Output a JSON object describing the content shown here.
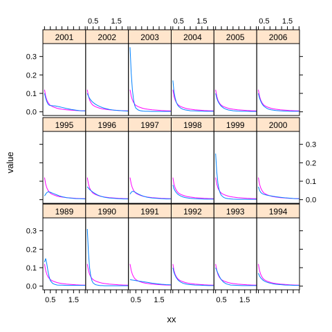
{
  "chart_data": {
    "type": "line",
    "title": "",
    "xlabel": "xx",
    "ylabel": "value",
    "xlim": [
      0.18,
      2.02
    ],
    "ylim": [
      -0.02,
      0.37
    ],
    "x_ticks": [
      0.5,
      1.5
    ],
    "x_tick_labels": [
      "0.5",
      "1.5"
    ],
    "y_ticks": [
      0.0,
      0.1,
      0.2,
      0.3
    ],
    "y_tick_labels": [
      "0.0",
      "0.1",
      "0.2",
      "0.3"
    ],
    "layout": {
      "columns": 6,
      "rows": 3
    },
    "colors": {
      "series1": "#0080ff",
      "series2": "#ff00ff",
      "strip": "#ffe5cc"
    },
    "x": [
      0.25,
      0.3,
      0.35,
      0.4,
      0.45,
      0.5,
      0.6,
      0.7,
      0.8,
      0.9,
      1.0,
      1.2,
      1.4,
      1.6,
      1.8,
      2.0
    ],
    "panels": [
      {
        "year": "2001",
        "s1": [
          0.1,
          0.075,
          0.055,
          0.042,
          0.036,
          0.034,
          0.033,
          0.032,
          0.03,
          0.027,
          0.024,
          0.018,
          0.013,
          0.009,
          0.006,
          0.005
        ],
        "s2": [
          0.12,
          0.085,
          0.064,
          0.051,
          0.042,
          0.035,
          0.028,
          0.023,
          0.019,
          0.016,
          0.014,
          0.011,
          0.009,
          0.007,
          0.006,
          0.005
        ]
      },
      {
        "year": "2002",
        "s1": [
          0.1,
          0.085,
          0.073,
          0.064,
          0.057,
          0.051,
          0.041,
          0.034,
          0.028,
          0.023,
          0.019,
          0.013,
          0.009,
          0.007,
          0.005,
          0.004
        ],
        "s2": [
          0.12,
          0.085,
          0.064,
          0.051,
          0.042,
          0.035,
          0.028,
          0.023,
          0.019,
          0.016,
          0.014,
          0.011,
          0.009,
          0.007,
          0.006,
          0.005
        ]
      },
      {
        "year": "2003",
        "s1": [
          0.35,
          0.21,
          0.12,
          0.065,
          0.035,
          0.02,
          0.01,
          0.006,
          0.004,
          0.003,
          0.003,
          0.002,
          0.002,
          0.002,
          0.002,
          0.002
        ],
        "s2": [
          0.12,
          0.085,
          0.064,
          0.051,
          0.042,
          0.035,
          0.028,
          0.023,
          0.019,
          0.016,
          0.014,
          0.011,
          0.009,
          0.007,
          0.006,
          0.005
        ]
      },
      {
        "year": "2004",
        "s1": [
          0.17,
          0.11,
          0.075,
          0.052,
          0.038,
          0.029,
          0.019,
          0.013,
          0.01,
          0.008,
          0.006,
          0.005,
          0.004,
          0.003,
          0.003,
          0.003
        ],
        "s2": [
          0.12,
          0.085,
          0.064,
          0.051,
          0.042,
          0.035,
          0.028,
          0.023,
          0.019,
          0.016,
          0.014,
          0.011,
          0.009,
          0.007,
          0.006,
          0.005
        ]
      },
      {
        "year": "2005",
        "s1": [
          0.1,
          0.074,
          0.058,
          0.046,
          0.037,
          0.03,
          0.02,
          0.014,
          0.01,
          0.008,
          0.006,
          0.004,
          0.003,
          0.003,
          0.002,
          0.002
        ],
        "s2": [
          0.12,
          0.085,
          0.064,
          0.051,
          0.042,
          0.035,
          0.028,
          0.023,
          0.019,
          0.016,
          0.014,
          0.011,
          0.009,
          0.007,
          0.006,
          0.005
        ]
      },
      {
        "year": "2006",
        "s1": [
          0.1,
          0.075,
          0.058,
          0.045,
          0.036,
          0.029,
          0.02,
          0.014,
          0.011,
          0.009,
          0.007,
          0.005,
          0.004,
          0.003,
          0.003,
          0.003
        ],
        "s2": [
          0.12,
          0.085,
          0.064,
          0.051,
          0.042,
          0.035,
          0.028,
          0.023,
          0.019,
          0.016,
          0.014,
          0.011,
          0.009,
          0.007,
          0.006,
          0.005
        ]
      },
      {
        "year": "1995",
        "s1": [
          0.02,
          0.03,
          0.038,
          0.042,
          0.042,
          0.04,
          0.035,
          0.03,
          0.025,
          0.02,
          0.016,
          0.011,
          0.008,
          0.006,
          0.005,
          0.004
        ],
        "s2": [
          0.12,
          0.085,
          0.064,
          0.051,
          0.042,
          0.035,
          0.028,
          0.023,
          0.019,
          0.016,
          0.014,
          0.011,
          0.009,
          0.007,
          0.006,
          0.005
        ]
      },
      {
        "year": "1996",
        "s1": [
          0.07,
          0.062,
          0.055,
          0.05,
          0.045,
          0.04,
          0.032,
          0.025,
          0.02,
          0.016,
          0.013,
          0.009,
          0.007,
          0.005,
          0.004,
          0.004
        ],
        "s2": [
          0.12,
          0.085,
          0.064,
          0.051,
          0.042,
          0.035,
          0.028,
          0.023,
          0.019,
          0.016,
          0.014,
          0.011,
          0.009,
          0.007,
          0.006,
          0.005
        ]
      },
      {
        "year": "1997",
        "s1": [
          0.03,
          0.04,
          0.045,
          0.045,
          0.042,
          0.038,
          0.031,
          0.025,
          0.02,
          0.016,
          0.013,
          0.009,
          0.007,
          0.005,
          0.004,
          0.004
        ],
        "s2": [
          0.12,
          0.085,
          0.064,
          0.051,
          0.042,
          0.035,
          0.028,
          0.023,
          0.019,
          0.016,
          0.014,
          0.011,
          0.009,
          0.007,
          0.006,
          0.005
        ]
      },
      {
        "year": "1998",
        "s1": [
          0.08,
          0.06,
          0.047,
          0.038,
          0.031,
          0.026,
          0.019,
          0.014,
          0.011,
          0.009,
          0.007,
          0.005,
          0.004,
          0.003,
          0.003,
          0.003
        ],
        "s2": [
          0.12,
          0.085,
          0.064,
          0.051,
          0.042,
          0.035,
          0.028,
          0.023,
          0.019,
          0.016,
          0.014,
          0.011,
          0.009,
          0.007,
          0.006,
          0.005
        ]
      },
      {
        "year": "1999",
        "s1": [
          0.25,
          0.15,
          0.09,
          0.055,
          0.035,
          0.023,
          0.012,
          0.007,
          0.005,
          0.004,
          0.003,
          0.002,
          0.002,
          0.002,
          0.002,
          0.002
        ],
        "s2": [
          0.12,
          0.085,
          0.064,
          0.051,
          0.042,
          0.035,
          0.028,
          0.023,
          0.019,
          0.016,
          0.014,
          0.011,
          0.009,
          0.007,
          0.006,
          0.005
        ]
      },
      {
        "year": "2000",
        "s1": [
          0.07,
          0.05,
          0.04,
          0.034,
          0.031,
          0.028,
          0.025,
          0.022,
          0.02,
          0.018,
          0.016,
          0.013,
          0.01,
          0.008,
          0.006,
          0.005
        ],
        "s2": [
          0.12,
          0.085,
          0.064,
          0.051,
          0.042,
          0.035,
          0.028,
          0.023,
          0.019,
          0.016,
          0.014,
          0.011,
          0.009,
          0.007,
          0.006,
          0.005
        ]
      },
      {
        "year": "1989",
        "s1": [
          0.13,
          0.15,
          0.12,
          0.08,
          0.05,
          0.03,
          0.015,
          0.009,
          0.006,
          0.005,
          0.005,
          0.004,
          0.004,
          0.004,
          0.004,
          0.004
        ],
        "s2": [
          0.12,
          0.085,
          0.064,
          0.051,
          0.042,
          0.035,
          0.028,
          0.023,
          0.019,
          0.016,
          0.014,
          0.011,
          0.009,
          0.007,
          0.006,
          0.005
        ]
      },
      {
        "year": "1990",
        "s1": [
          0.31,
          0.18,
          0.1,
          0.055,
          0.03,
          0.017,
          0.008,
          0.005,
          0.003,
          0.003,
          0.002,
          0.002,
          0.002,
          0.002,
          0.002,
          0.002
        ],
        "s2": [
          0.12,
          0.085,
          0.064,
          0.051,
          0.042,
          0.035,
          0.028,
          0.023,
          0.019,
          0.016,
          0.014,
          0.011,
          0.009,
          0.007,
          0.006,
          0.005
        ]
      },
      {
        "year": "1991",
        "s1": [
          0.035,
          0.034,
          0.033,
          0.032,
          0.031,
          0.03,
          0.028,
          0.026,
          0.024,
          0.022,
          0.02,
          0.016,
          0.013,
          0.01,
          0.008,
          0.007
        ],
        "s2": [
          0.12,
          0.085,
          0.064,
          0.051,
          0.042,
          0.035,
          0.028,
          0.023,
          0.019,
          0.016,
          0.014,
          0.011,
          0.009,
          0.007,
          0.006,
          0.005
        ]
      },
      {
        "year": "1992",
        "s1": [
          0.1,
          0.075,
          0.058,
          0.046,
          0.037,
          0.03,
          0.021,
          0.015,
          0.012,
          0.009,
          0.008,
          0.006,
          0.005,
          0.004,
          0.003,
          0.003
        ],
        "s2": [
          0.12,
          0.085,
          0.064,
          0.051,
          0.042,
          0.035,
          0.028,
          0.023,
          0.019,
          0.016,
          0.014,
          0.011,
          0.009,
          0.007,
          0.006,
          0.005
        ]
      },
      {
        "year": "1993",
        "s1": [
          0.1,
          0.085,
          0.07,
          0.056,
          0.044,
          0.034,
          0.021,
          0.013,
          0.009,
          0.006,
          0.005,
          0.004,
          0.003,
          0.003,
          0.003,
          0.003
        ],
        "s2": [
          0.12,
          0.085,
          0.064,
          0.051,
          0.042,
          0.035,
          0.028,
          0.023,
          0.019,
          0.016,
          0.014,
          0.011,
          0.009,
          0.007,
          0.006,
          0.005
        ]
      },
      {
        "year": "1994",
        "s1": [
          0.07,
          0.055,
          0.045,
          0.038,
          0.032,
          0.028,
          0.022,
          0.018,
          0.015,
          0.012,
          0.01,
          0.008,
          0.006,
          0.005,
          0.004,
          0.004
        ],
        "s2": [
          0.12,
          0.085,
          0.064,
          0.051,
          0.042,
          0.035,
          0.028,
          0.023,
          0.019,
          0.016,
          0.014,
          0.011,
          0.009,
          0.007,
          0.006,
          0.005
        ]
      }
    ]
  }
}
